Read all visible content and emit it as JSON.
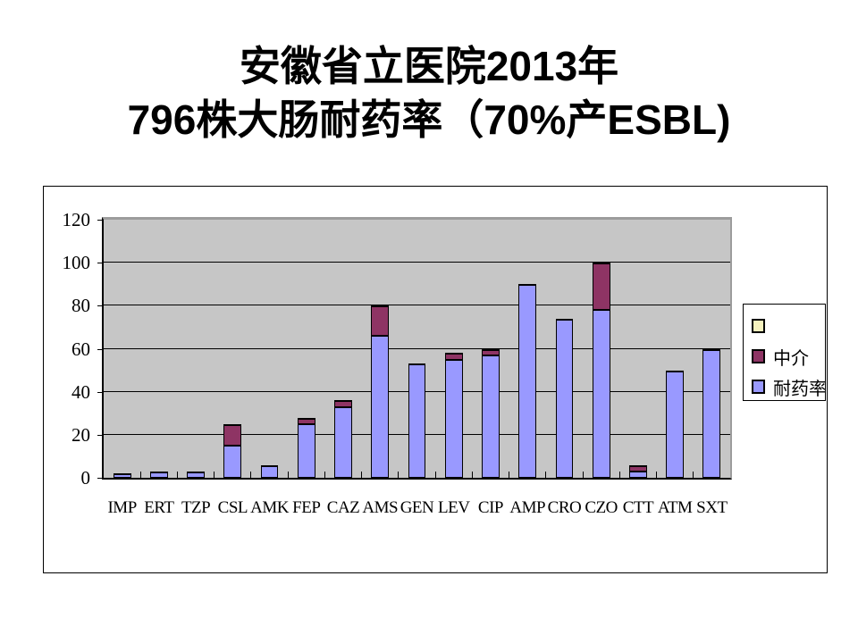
{
  "slide": {
    "title_line1": "安徽省立医院2013年",
    "title_line2": "796株大肠耐药率（70%产ESBL)"
  },
  "chart_data": {
    "type": "bar",
    "stacked": true,
    "title": "安徽省立医院2013年 796株大肠耐药率（70%产ESBL)",
    "xlabel": "",
    "ylabel": "",
    "categories": [
      "IMP",
      "ERT",
      "TZP",
      "CSL",
      "AMK",
      "FEP",
      "CAZ",
      "AMS",
      "GEN",
      "LEV",
      "CIP",
      "AMP",
      "CRO",
      "CZO",
      "CTT",
      "ATM",
      "SXT"
    ],
    "series": [
      {
        "name": "耐药率",
        "color": "#9999FF",
        "values": [
          2,
          3,
          3,
          15,
          6,
          25,
          33,
          66,
          53,
          55,
          57,
          90,
          74,
          78,
          3,
          50,
          60
        ]
      },
      {
        "name": "中介",
        "color": "#8E3464",
        "values": [
          0,
          0,
          0,
          10,
          0,
          3,
          3,
          14,
          0,
          3,
          3,
          0,
          0,
          22,
          3,
          0,
          0
        ]
      }
    ],
    "ylim": [
      0,
      120
    ],
    "yticks": [
      0,
      20,
      40,
      60,
      80,
      100,
      120
    ],
    "grid": true,
    "plot_bg": "#C6C6C6",
    "legend_position": "right",
    "legend": [
      {
        "label": "",
        "color": "#F6F2BE"
      },
      {
        "label": "中介",
        "color": "#8E3464"
      },
      {
        "label": "耐药率",
        "color": "#9999FF"
      }
    ]
  }
}
